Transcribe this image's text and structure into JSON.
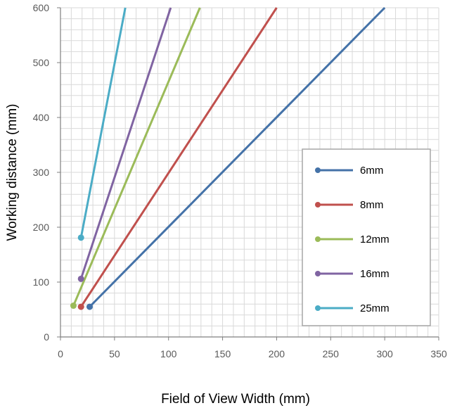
{
  "chart_data": {
    "type": "line",
    "title": "",
    "xlabel": "Field of View Width (mm)",
    "ylabel": "Working distance (mm)",
    "xlim": [
      0,
      350
    ],
    "ylim": [
      0,
      600
    ],
    "x_ticks": [
      "0",
      "50",
      "100",
      "150",
      "200",
      "250",
      "300",
      "350"
    ],
    "y_ticks": [
      "0",
      "100",
      "200",
      "300",
      "400",
      "500",
      "600"
    ],
    "grid": true,
    "legend_position": "right",
    "series": [
      {
        "name": "6mm",
        "color": "#4472a8",
        "points": [
          [
            27,
            55
          ],
          [
            300,
            600
          ]
        ]
      },
      {
        "name": "8mm",
        "color": "#c0504d",
        "points": [
          [
            19,
            55
          ],
          [
            200,
            600
          ]
        ]
      },
      {
        "name": "12mm",
        "color": "#9bbb59",
        "points": [
          [
            12,
            57
          ],
          [
            129,
            600
          ]
        ]
      },
      {
        "name": "16mm",
        "color": "#8064a2",
        "points": [
          [
            19,
            106
          ],
          [
            102,
            600
          ]
        ]
      },
      {
        "name": "25mm",
        "color": "#4bacc6",
        "points": [
          [
            19,
            181
          ],
          [
            60,
            600
          ]
        ]
      }
    ]
  }
}
